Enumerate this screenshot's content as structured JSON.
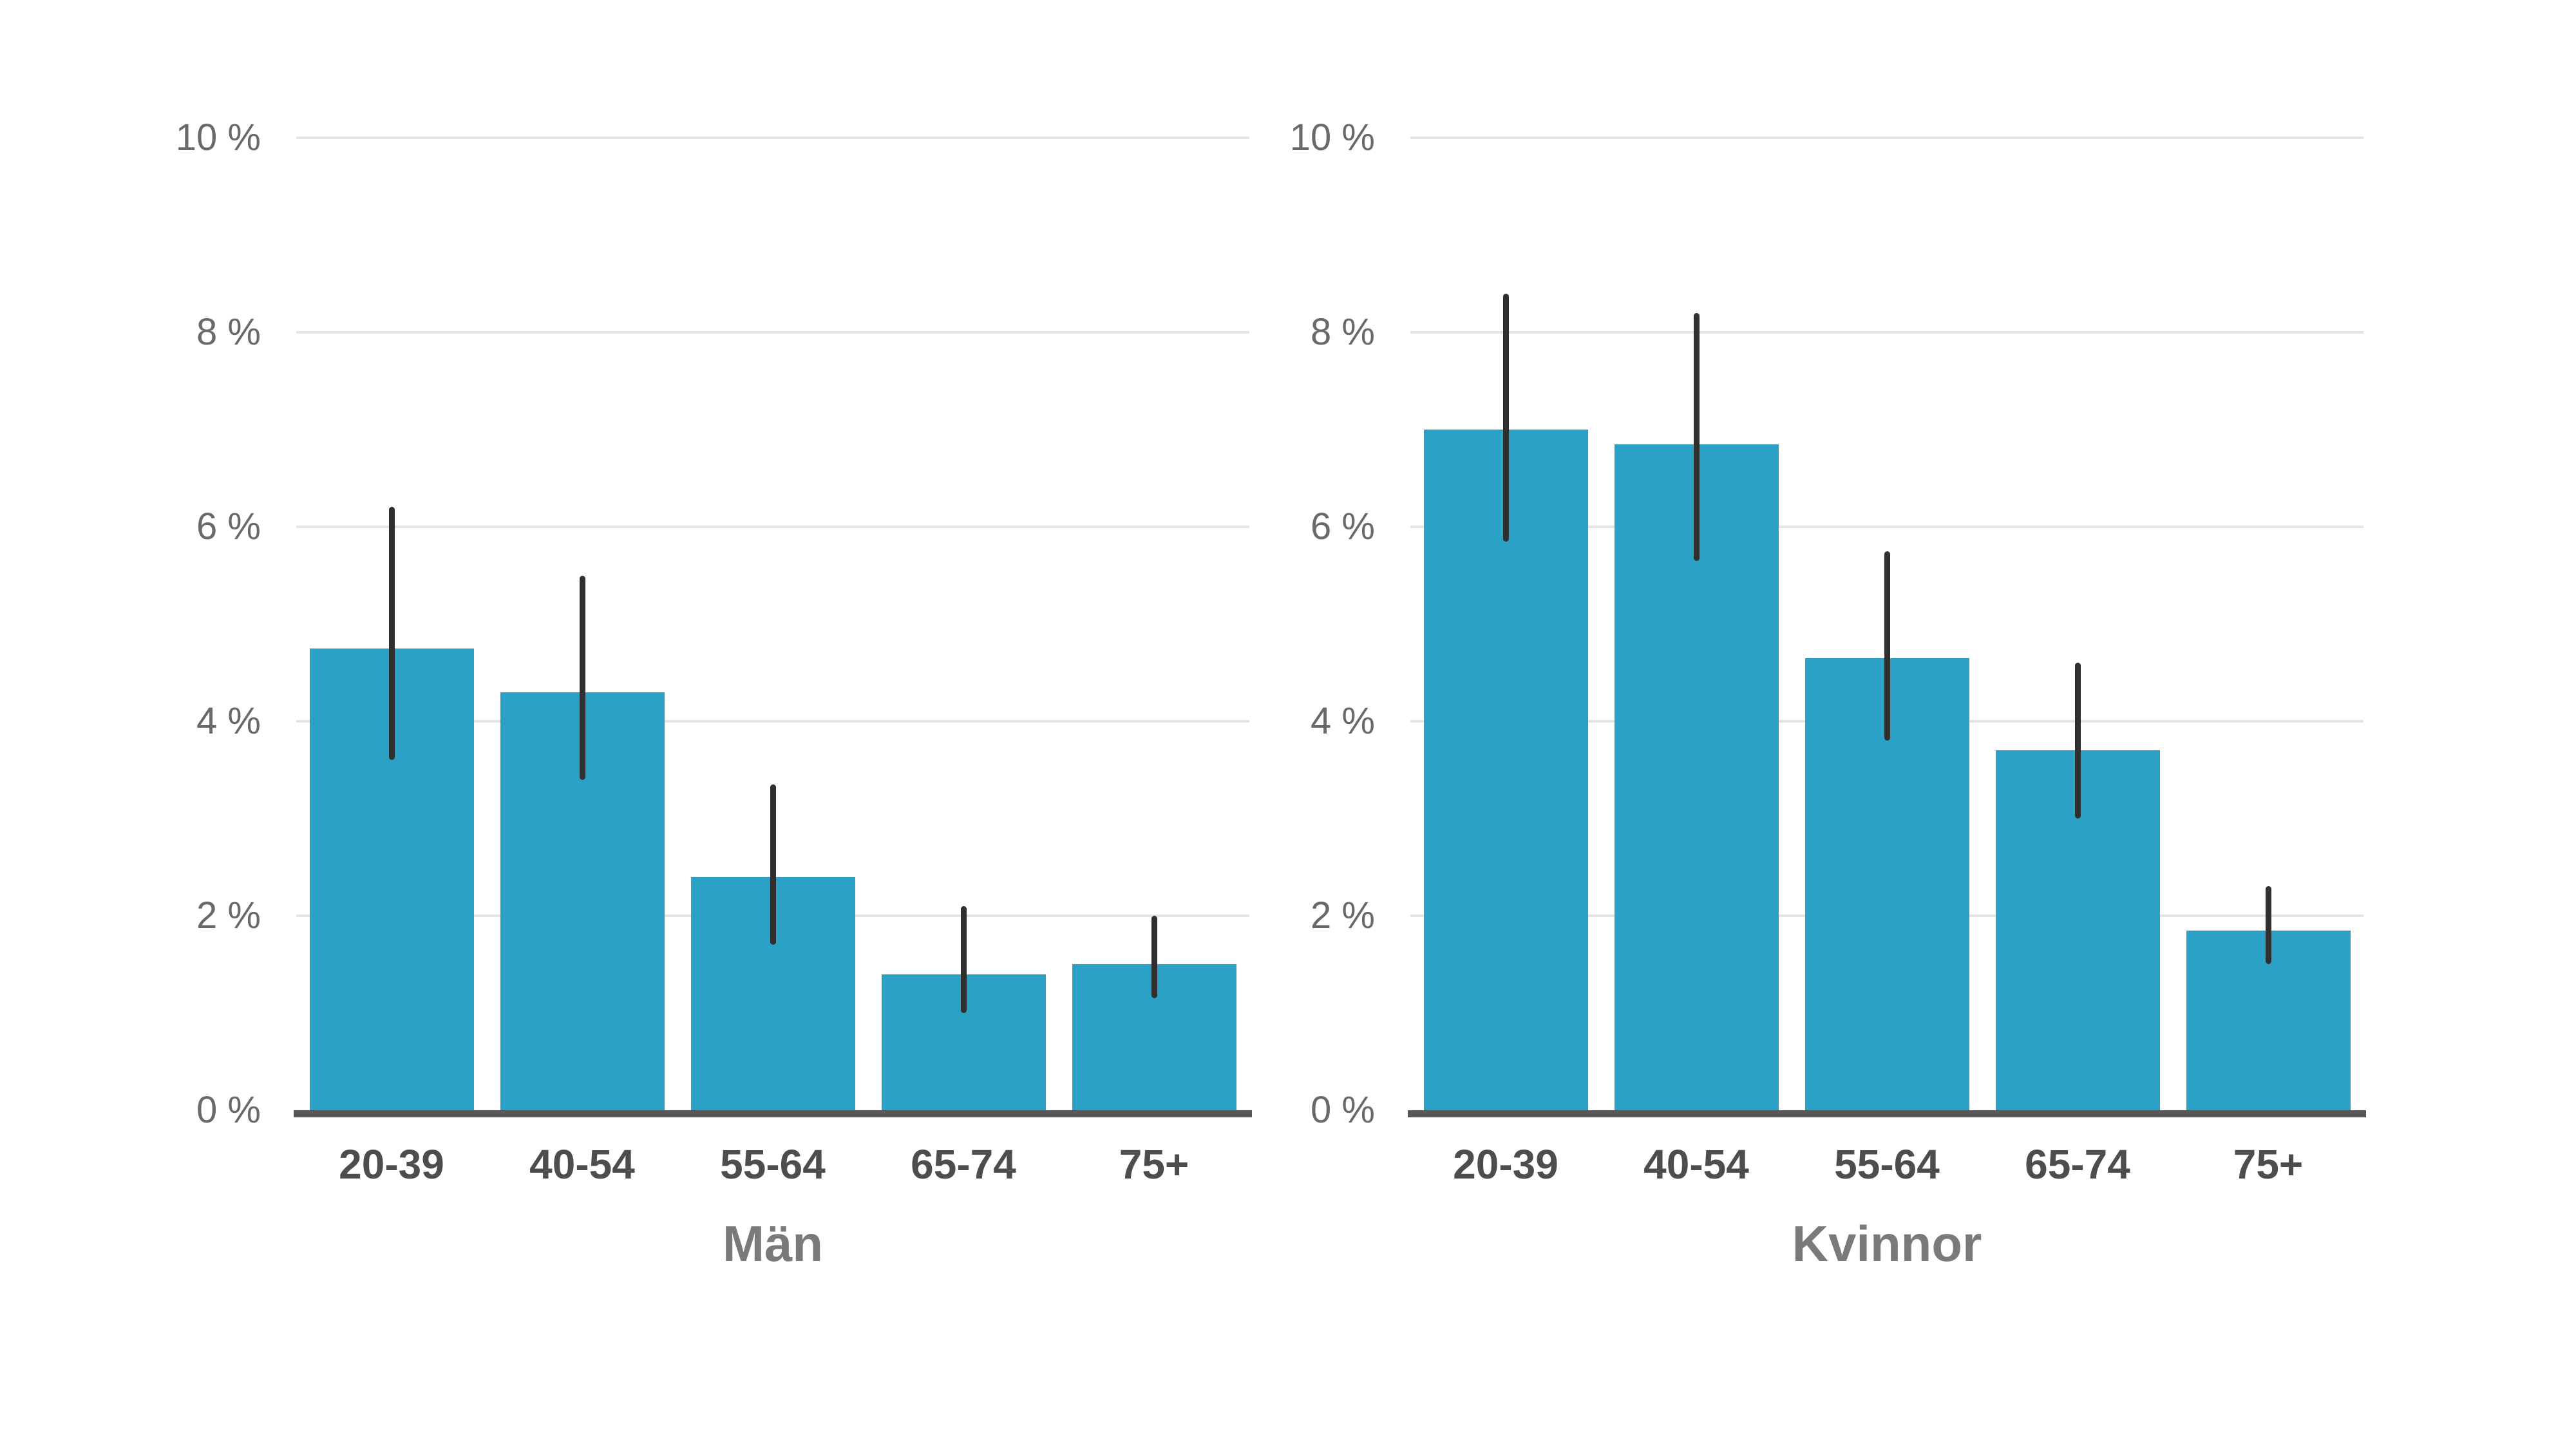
{
  "page": {
    "background": "#ffffff"
  },
  "colors": {
    "bar": "#2aa1c5",
    "error_bar": "#2f2f2f",
    "baseline": "#575757",
    "gridline": "#e4e4e4",
    "x_tick_label": "#4d4d4d",
    "y_tick_label": "#696969",
    "title": "#7a7a7a"
  },
  "chart_data": [
    {
      "type": "bar",
      "title": "Män",
      "categories": [
        "20-39",
        "40-54",
        "55-64",
        "65-74",
        "75+"
      ],
      "values": [
        4.75,
        4.3,
        2.4,
        1.4,
        1.5
      ],
      "error_low": [
        3.6,
        3.4,
        1.7,
        1.0,
        1.15
      ],
      "error_high": [
        6.2,
        5.5,
        3.35,
        2.1,
        2.0
      ],
      "ylim": [
        0,
        10
      ],
      "y_ticks": [
        0,
        2,
        4,
        6,
        8,
        10
      ],
      "y_tick_labels": [
        "0 %",
        "2 %",
        "4 %",
        "6 %",
        "8 %",
        "10 %"
      ],
      "xlabel": "",
      "ylabel": "",
      "grid": true,
      "legend": "none"
    },
    {
      "type": "bar",
      "title": "Kvinnor",
      "categories": [
        "20-39",
        "40-54",
        "55-64",
        "65-74",
        "75+"
      ],
      "values": [
        7.0,
        6.85,
        4.65,
        3.7,
        1.85
      ],
      "error_low": [
        5.85,
        5.65,
        3.8,
        3.0,
        1.5
      ],
      "error_high": [
        8.4,
        8.2,
        5.75,
        4.6,
        2.3
      ],
      "ylim": [
        0,
        10
      ],
      "y_ticks": [
        0,
        2,
        4,
        6,
        8,
        10
      ],
      "y_tick_labels": [
        "0 %",
        "2 %",
        "4 %",
        "6 %",
        "8 %",
        "10 %"
      ],
      "xlabel": "",
      "ylabel": "",
      "grid": true,
      "legend": "none"
    }
  ]
}
